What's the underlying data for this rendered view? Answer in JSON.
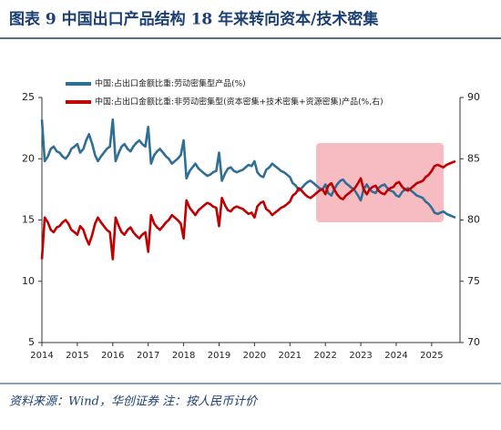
{
  "chart_data": {
    "type": "line",
    "title": "图表 9   中国出口产品结构 18 年来转向资本/技术密集",
    "source": "资料来源：Wind，华创证券  注：按人民币计价",
    "x": [
      2014,
      2014.08,
      2014.17,
      2014.25,
      2014.33,
      2014.42,
      2014.5,
      2014.58,
      2014.67,
      2014.75,
      2014.83,
      2014.92,
      2015,
      2015.08,
      2015.17,
      2015.25,
      2015.33,
      2015.42,
      2015.5,
      2015.58,
      2015.67,
      2015.75,
      2015.83,
      2015.92,
      2016,
      2016.08,
      2016.17,
      2016.25,
      2016.33,
      2016.42,
      2016.5,
      2016.58,
      2016.67,
      2016.75,
      2016.83,
      2016.92,
      2017,
      2017.08,
      2017.17,
      2017.25,
      2017.33,
      2017.42,
      2017.5,
      2017.58,
      2017.67,
      2017.75,
      2017.83,
      2017.92,
      2018,
      2018.08,
      2018.17,
      2018.25,
      2018.33,
      2018.42,
      2018.5,
      2018.58,
      2018.67,
      2018.75,
      2018.83,
      2018.92,
      2019,
      2019.08,
      2019.17,
      2019.25,
      2019.33,
      2019.42,
      2019.5,
      2019.58,
      2019.67,
      2019.75,
      2019.83,
      2019.92,
      2020,
      2020.08,
      2020.17,
      2020.25,
      2020.33,
      2020.42,
      2020.5,
      2020.58,
      2020.67,
      2020.75,
      2020.83,
      2020.92,
      2021,
      2021.08,
      2021.17,
      2021.25,
      2021.33,
      2021.42,
      2021.5,
      2021.58,
      2021.67,
      2021.75,
      2021.83,
      2021.92,
      2022,
      2022.08,
      2022.17,
      2022.25,
      2022.33,
      2022.42,
      2022.5,
      2022.58,
      2022.67,
      2022.75,
      2022.83,
      2022.92,
      2023,
      2023.08,
      2023.17,
      2023.25,
      2023.33,
      2023.42,
      2023.5,
      2023.58,
      2023.67,
      2023.75,
      2023.83,
      2023.92,
      2024,
      2024.08,
      2024.17,
      2024.25,
      2024.33,
      2024.42,
      2024.5,
      2024.58,
      2024.67,
      2024.75,
      2024.83,
      2024.92,
      2025,
      2025.08,
      2025.17,
      2025.25,
      2025.33,
      2025.42,
      2025.5,
      2025.58,
      2025.67
    ],
    "series": [
      {
        "name": "中国:占出口金额比重:劳动密集型产品(%)",
        "color": "#2f6f96",
        "axis": "y",
        "values": [
          23.2,
          19.8,
          20.2,
          20.8,
          21.0,
          20.6,
          20.5,
          20.2,
          20.0,
          20.3,
          20.8,
          21.0,
          21.2,
          20.5,
          20.8,
          21.5,
          22.0,
          21.2,
          20.3,
          19.8,
          20.2,
          20.5,
          20.8,
          21.0,
          23.2,
          19.8,
          20.5,
          21.0,
          21.2,
          20.8,
          20.6,
          21.0,
          21.3,
          21.5,
          21.2,
          21.0,
          22.6,
          19.6,
          20.3,
          20.6,
          20.8,
          20.5,
          20.2,
          20.0,
          19.6,
          19.8,
          20.0,
          20.3,
          21.5,
          18.4,
          19.0,
          19.3,
          19.6,
          19.2,
          19.0,
          18.8,
          18.6,
          18.7,
          18.9,
          19.0,
          20.5,
          18.2,
          18.8,
          19.2,
          19.3,
          19.0,
          18.9,
          19.0,
          19.1,
          19.3,
          19.5,
          19.4,
          19.8,
          18.9,
          18.6,
          18.5,
          19.1,
          19.3,
          19.6,
          19.4,
          19.2,
          19.0,
          18.9,
          18.7,
          18.5,
          18.0,
          17.8,
          17.4,
          17.6,
          17.9,
          18.1,
          18.2,
          18.0,
          17.8,
          17.6,
          17.5,
          17.9,
          17.2,
          17.0,
          17.5,
          17.9,
          18.2,
          18.3,
          18.0,
          17.8,
          17.6,
          17.4,
          17.0,
          16.6,
          17.5,
          17.9,
          17.5,
          17.3,
          17.2,
          17.6,
          17.8,
          17.9,
          17.6,
          17.4,
          17.3,
          17.0,
          16.9,
          17.3,
          17.5,
          17.6,
          17.4,
          17.2,
          17.0,
          16.9,
          16.8,
          16.5,
          16.3,
          16.0,
          15.6,
          15.5,
          15.6,
          15.7,
          15.5,
          15.4,
          15.3,
          15.2
        ]
      },
      {
        "name": "中国:占出口金额比重:非劳动密集型(资本密集+技术密集+资源密集)产品(%,右)",
        "color": "#c00000",
        "axis": "y2",
        "values": [
          76.8,
          80.2,
          79.8,
          79.2,
          79.0,
          79.4,
          79.5,
          79.8,
          80.0,
          79.7,
          79.2,
          79.0,
          78.8,
          79.5,
          79.2,
          78.5,
          78.0,
          78.8,
          79.7,
          80.2,
          79.8,
          79.5,
          79.2,
          79.0,
          76.8,
          80.2,
          79.5,
          79.0,
          78.8,
          79.2,
          79.4,
          79.0,
          78.7,
          78.5,
          78.8,
          79.0,
          77.4,
          80.4,
          79.7,
          79.4,
          79.2,
          79.5,
          79.8,
          80.0,
          80.4,
          80.2,
          80.0,
          79.7,
          78.5,
          81.6,
          81.0,
          80.7,
          80.4,
          80.8,
          81.0,
          81.2,
          81.4,
          81.3,
          81.1,
          81.0,
          79.5,
          81.8,
          81.2,
          80.8,
          80.7,
          81.0,
          81.1,
          81.0,
          80.9,
          80.7,
          80.5,
          80.6,
          80.2,
          81.1,
          81.4,
          81.5,
          80.9,
          80.7,
          80.4,
          80.6,
          80.8,
          81.0,
          81.1,
          81.3,
          81.5,
          82.0,
          82.2,
          82.6,
          82.4,
          82.1,
          81.9,
          81.8,
          82.0,
          82.2,
          82.4,
          82.5,
          82.1,
          82.8,
          83.0,
          82.5,
          82.1,
          81.8,
          81.7,
          82.0,
          82.2,
          82.4,
          82.6,
          83.0,
          83.4,
          82.5,
          82.1,
          82.5,
          82.7,
          82.8,
          82.4,
          82.2,
          82.1,
          82.4,
          82.6,
          82.7,
          83.0,
          83.1,
          82.7,
          82.5,
          82.4,
          82.6,
          82.8,
          83.0,
          83.1,
          83.2,
          83.5,
          83.7,
          84.0,
          84.4,
          84.5,
          84.4,
          84.3,
          84.5,
          84.6,
          84.7,
          84.8
        ]
      }
    ],
    "xlim": [
      2014,
      2025.8
    ],
    "xticks": [
      2014,
      2015,
      2016,
      2017,
      2018,
      2019,
      2020,
      2021,
      2022,
      2023,
      2024,
      2025
    ],
    "ylim": [
      5,
      25
    ],
    "yticks": [
      5,
      10,
      15,
      20,
      25
    ],
    "y2lim": [
      70,
      90
    ],
    "y2ticks": [
      70,
      75,
      80,
      85,
      90
    ]
  }
}
